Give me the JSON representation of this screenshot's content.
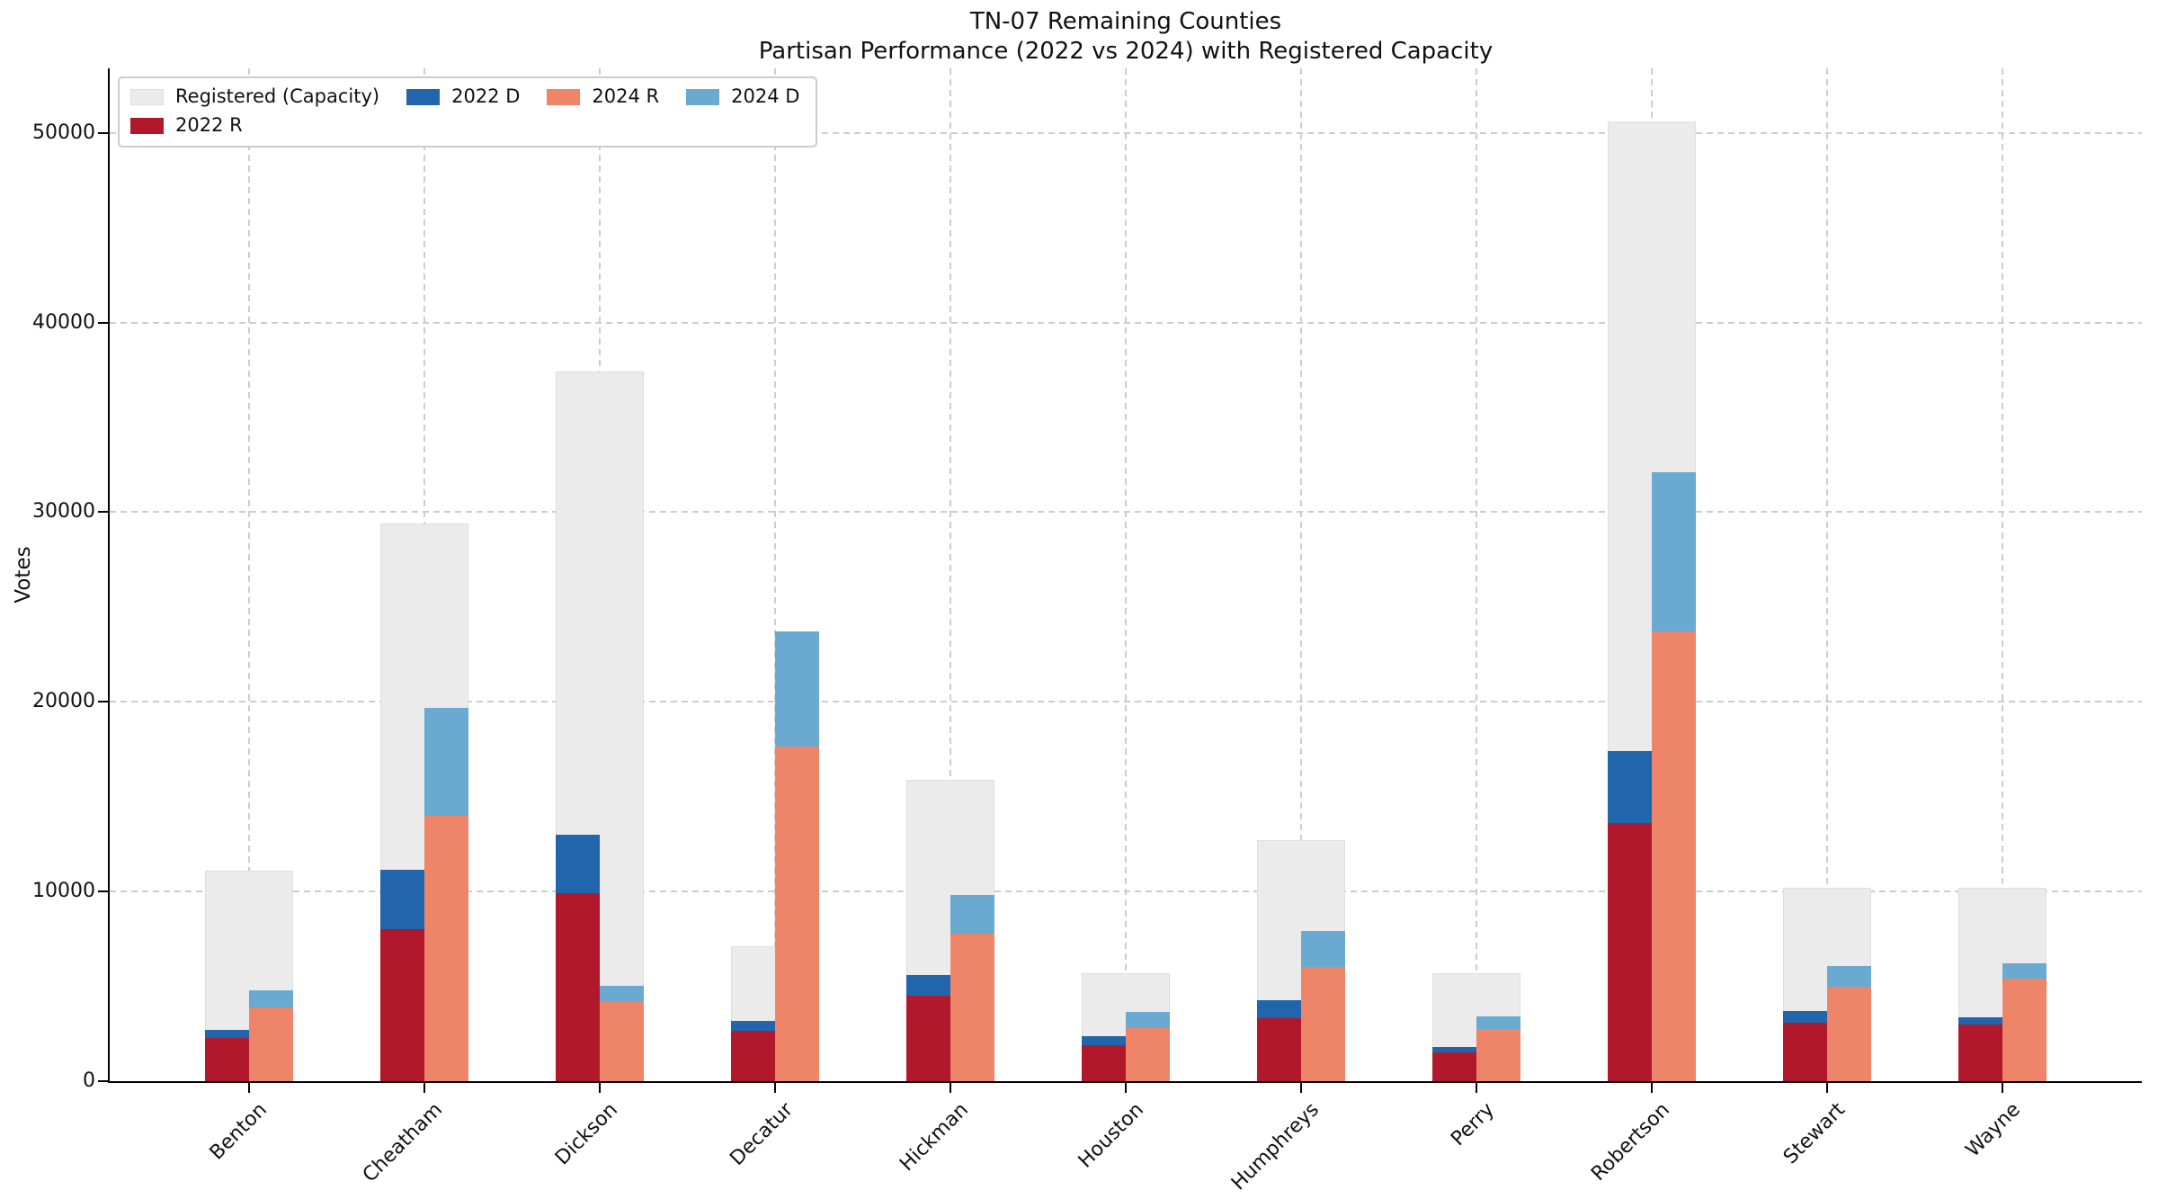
{
  "chart_data": {
    "type": "bar",
    "title": "TN-07 Remaining Counties",
    "subtitle": "Partisan Performance (2022 vs 2024) with Registered Capacity",
    "ylabel": "Votes",
    "ylim": [
      0,
      53400
    ],
    "yticks": [
      0,
      10000,
      20000,
      30000,
      40000,
      50000
    ],
    "grid": true,
    "legend_position": "upper left",
    "legend_columns": [
      [
        0,
        1
      ],
      [
        2
      ],
      [
        3
      ],
      [
        4
      ]
    ],
    "categories": [
      "Benton",
      "Cheatham",
      "Dickson",
      "Decatur",
      "Hickman",
      "Houston",
      "Humphreys",
      "Perry",
      "Robertson",
      "Stewart",
      "Wayne"
    ],
    "series": [
      {
        "name": "Registered (Capacity)",
        "role": "capacity-background",
        "color": "#ebebeb",
        "values": [
          11100,
          29400,
          37400,
          7100,
          15900,
          5700,
          12700,
          5700,
          50600,
          10200,
          10200
        ]
      },
      {
        "name": "2022 R",
        "role": "stack-2022-bottom",
        "color": "#b2182b",
        "values": [
          2300,
          8000,
          9900,
          2650,
          4500,
          1900,
          3300,
          1500,
          13600,
          3100,
          3000
        ]
      },
      {
        "name": "2022 D",
        "role": "stack-2022-top",
        "color": "#2166ac",
        "values": [
          450,
          3150,
          3100,
          500,
          1100,
          480,
          950,
          300,
          3800,
          630,
          400
        ]
      },
      {
        "name": "2024 R",
        "role": "stack-2024-bottom",
        "color": "#ee8568",
        "values": [
          3900,
          14000,
          4200,
          17650,
          7800,
          2800,
          6000,
          2750,
          23700,
          5000,
          5400
        ]
      },
      {
        "name": "2024 D",
        "role": "stack-2024-top",
        "color": "#6aaad1",
        "values": [
          900,
          5700,
          800,
          6050,
          2050,
          840,
          1900,
          650,
          8400,
          1100,
          800
        ]
      }
    ],
    "colors": {
      "grid": "#cdcdcd",
      "spine": "#000000",
      "text": "#111111",
      "capacity_edge": "#dedede"
    }
  }
}
